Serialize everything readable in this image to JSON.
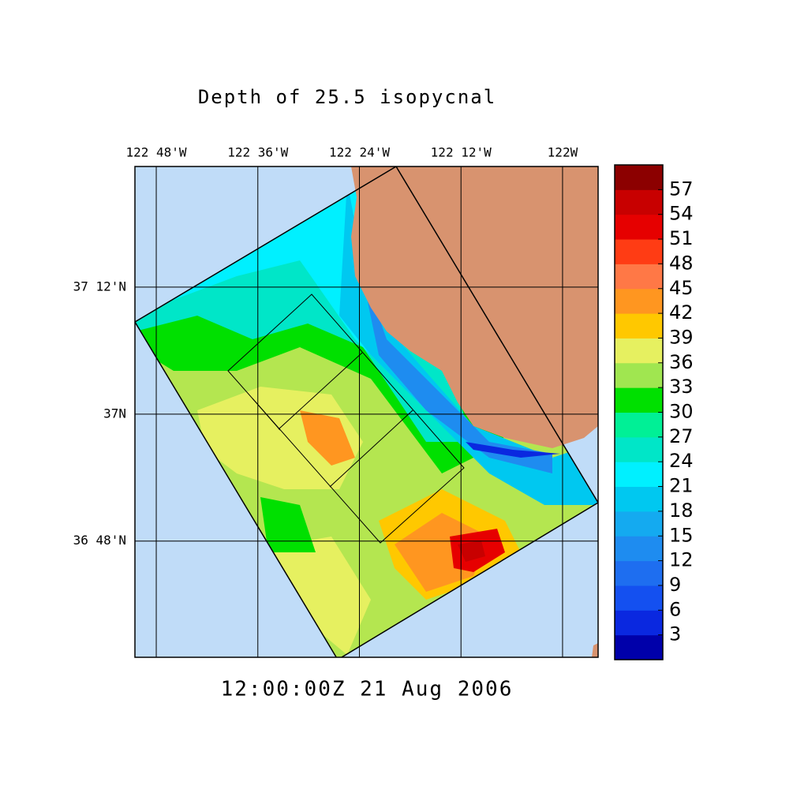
{
  "map": {
    "title": "Depth of 25.5 isopycnal",
    "timestamp": "12:00:00Z  21 Aug 2006",
    "xlim": [
      -122.842,
      -121.93
    ],
    "ylim": [
      36.617,
      37.39
    ],
    "xticks": [
      {
        "value": -122.8,
        "label": "122 48'W"
      },
      {
        "value": -122.6,
        "label": "122 36'W"
      },
      {
        "value": -122.4,
        "label": "122 24'W"
      },
      {
        "value": -122.2,
        "label": "122 12'W"
      },
      {
        "value": -122,
        "label": "122W"
      }
    ],
    "yticks": [
      {
        "value": 37.2,
        "label": "37 12'N"
      },
      {
        "value": 37,
        "label": "37N"
      },
      {
        "value": 36.8,
        "label": "36 48'N"
      }
    ],
    "grid": true,
    "colorbar": {
      "range": [
        0,
        60
      ],
      "ticks": [
        3,
        6,
        9,
        12,
        15,
        18,
        21,
        24,
        27,
        30,
        33,
        36,
        39,
        42,
        45,
        48,
        51,
        54,
        57
      ],
      "colors": [
        "#0000aa",
        "#0a28e0",
        "#1450f0",
        "#1e6ef0",
        "#1e8cf0",
        "#14aaf0",
        "#00c8f0",
        "#00f0ff",
        "#00e6c8",
        "#00f096",
        "#00e000",
        "#a0e650",
        "#e6f060",
        "#ffc800",
        "#ff9620",
        "#ff7846",
        "#ff3c14",
        "#e60000",
        "#c80000",
        "#8c0000"
      ]
    }
  }
}
